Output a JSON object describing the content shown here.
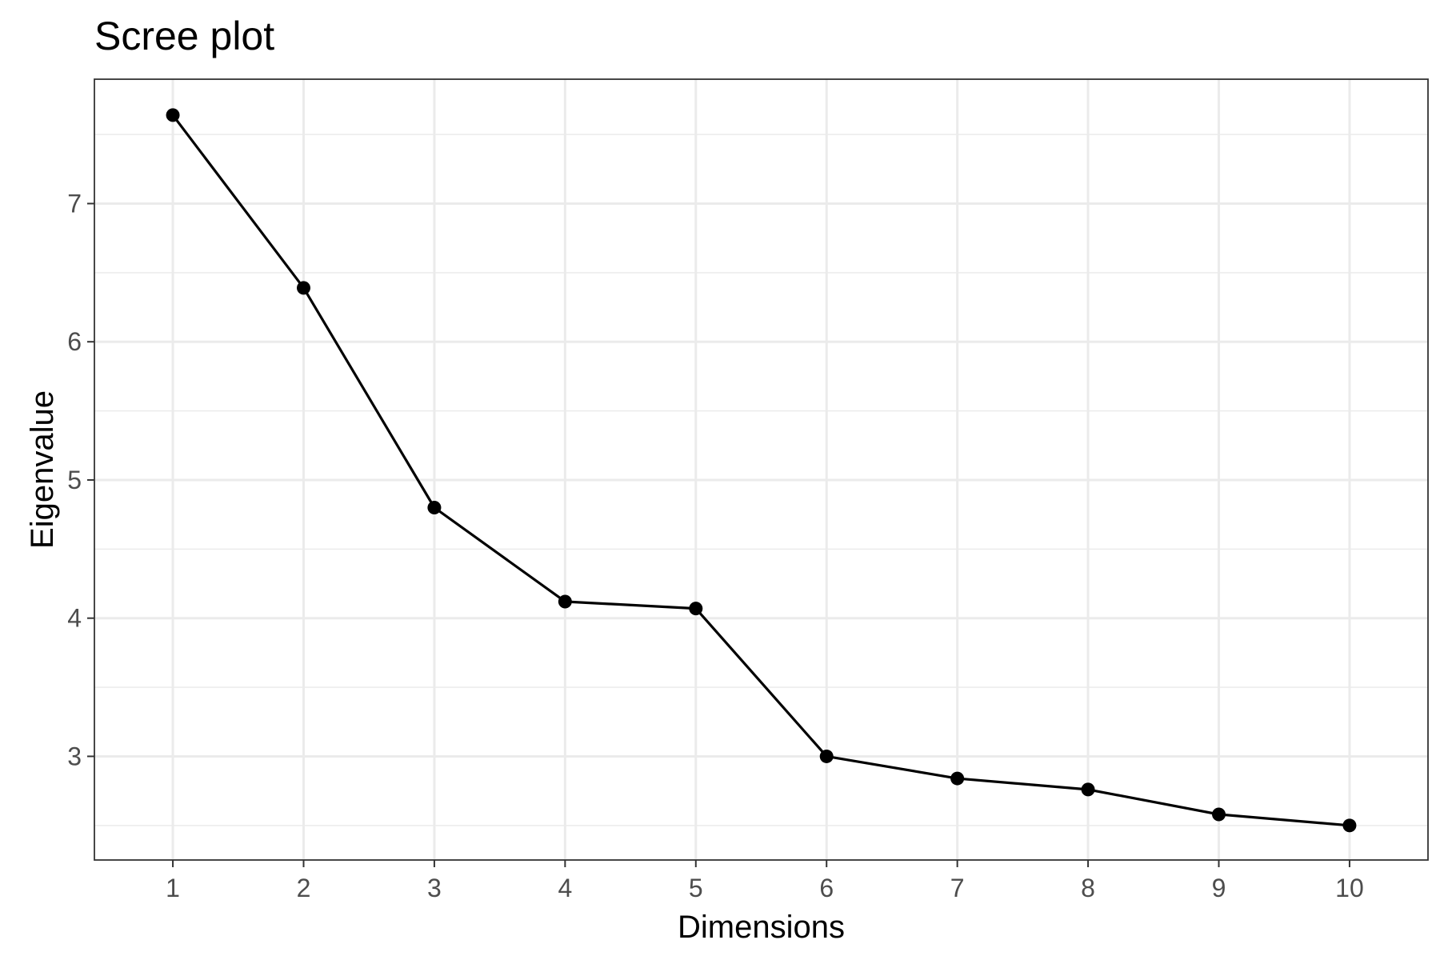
{
  "chart_data": {
    "type": "line",
    "title": "Scree plot",
    "xlabel": "Dimensions",
    "ylabel": "Eigenvalue",
    "x": [
      1,
      2,
      3,
      4,
      5,
      6,
      7,
      8,
      9,
      10
    ],
    "x_tick_labels": [
      "1",
      "2",
      "3",
      "4",
      "5",
      "6",
      "7",
      "8",
      "9",
      "10"
    ],
    "y_ticks": [
      3,
      4,
      5,
      6,
      7
    ],
    "y_tick_labels": [
      "3",
      "4",
      "5",
      "6",
      "7"
    ],
    "series": [
      {
        "values": [
          7.64,
          6.39,
          4.8,
          4.12,
          4.07,
          3.0,
          2.84,
          2.76,
          2.58,
          2.5
        ],
        "color": "#000000",
        "markers": true
      }
    ],
    "xlim": [
      0.4,
      10.6
    ],
    "ylim": [
      2.25,
      7.9
    ],
    "grid": true,
    "theme": "bw"
  }
}
